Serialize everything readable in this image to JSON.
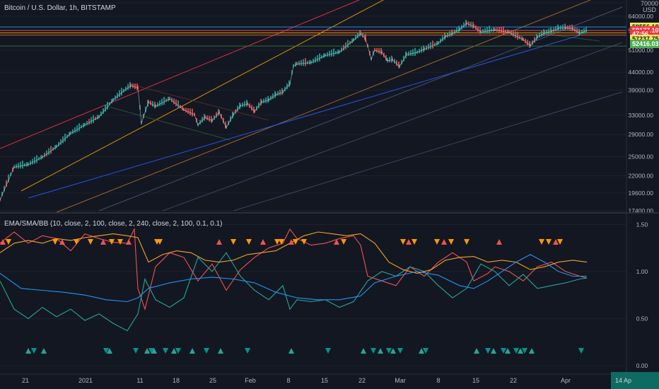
{
  "chart_data": [
    {
      "type": "line",
      "title": "Bitcoin / U.S. Dollar, 1h, BITSTAMP",
      "currency": "USD",
      "scale": "log",
      "ylim": [
        17400,
        70000
      ],
      "yticks": [
        70000,
        64000,
        58000,
        51000,
        44000,
        39000,
        33000,
        29000,
        25000,
        22000,
        19600,
        17400
      ],
      "xticks": [
        "21",
        "2021",
        "11",
        "18",
        "25",
        "Feb",
        "8",
        "15",
        "22",
        "Mar",
        "8",
        "15",
        "22",
        "Apr"
      ],
      "price_tags": [
        {
          "label": "59556.18",
          "value": 59556,
          "bg": "#f0ea5c",
          "fg": "#131722"
        },
        {
          "label": "58177.10",
          "value": 58177,
          "bg": "#f23645",
          "fg": "#ffffff"
        },
        {
          "label": "47:56",
          "value": 56800,
          "bg": "#f23645",
          "fg": "#ffffff"
        },
        {
          "label": "57237.75",
          "value": 54900,
          "bg": "#f0ea5c",
          "fg": "#131722"
        },
        {
          "label": "52416.03",
          "value": 53200,
          "bg": "#4caf50",
          "fg": "#ffffff"
        }
      ],
      "series": [
        {
          "values": [
            [
              0,
              18700
            ],
            [
              20,
              23300
            ],
            [
              40,
              23700
            ],
            [
              60,
              24900
            ],
            [
              80,
              26700
            ],
            [
              100,
              29200
            ],
            [
              120,
              30900
            ],
            [
              140,
              32600
            ],
            [
              160,
              36500
            ],
            [
              175,
              38800
            ],
            [
              185,
              40200
            ],
            [
              195,
              39600
            ],
            [
              200,
              31300
            ],
            [
              210,
              36000
            ],
            [
              220,
              35000
            ],
            [
              240,
              36800
            ],
            [
              260,
              34200
            ],
            [
              275,
              33100
            ],
            [
              280,
              30900
            ],
            [
              290,
              32500
            ],
            [
              300,
              31800
            ],
            [
              310,
              33600
            ],
            [
              320,
              30400
            ],
            [
              330,
              33100
            ],
            [
              340,
              35100
            ],
            [
              350,
              35600
            ],
            [
              360,
              33800
            ],
            [
              370,
              36000
            ],
            [
              380,
              36500
            ],
            [
              390,
              37800
            ],
            [
              400,
              38500
            ],
            [
              410,
              40700
            ],
            [
              415,
              45800
            ],
            [
              420,
              46500
            ],
            [
              440,
              46900
            ],
            [
              460,
              49200
            ],
            [
              480,
              50300
            ],
            [
              500,
              54500
            ],
            [
              510,
              57000
            ],
            [
              517,
              55000
            ],
            [
              520,
              52400
            ],
            [
              525,
              48000
            ],
            [
              530,
              51000
            ],
            [
              540,
              50200
            ],
            [
              548,
              47500
            ],
            [
              555,
              47800
            ],
            [
              565,
              45700
            ],
            [
              575,
              49500
            ],
            [
              590,
              50200
            ],
            [
              600,
              51300
            ],
            [
              620,
              53400
            ],
            [
              630,
              55800
            ],
            [
              640,
              57000
            ],
            [
              650,
              58500
            ],
            [
              660,
              61000
            ],
            [
              670,
              59800
            ],
            [
              680,
              57500
            ],
            [
              700,
              58400
            ],
            [
              720,
              57400
            ],
            [
              740,
              54700
            ],
            [
              750,
              52500
            ],
            [
              760,
              55600
            ],
            [
              770,
              57200
            ],
            [
              780,
              57800
            ],
            [
              790,
              59000
            ],
            [
              800,
              59200
            ],
            [
              810,
              58800
            ],
            [
              820,
              57100
            ],
            [
              830,
              58100
            ]
          ]
        }
      ],
      "colors": {
        "up": "#26a69a",
        "down": "#ef5350",
        "line": "#d1d4dc"
      }
    },
    {
      "type": "line",
      "title": "EMA/SMA/BB (10, close, 2, 100, close, 2, 240, close, 2, 100, 0.1, 0.1)",
      "ylim": [
        0,
        1.6
      ],
      "yticks": [
        "1.50",
        "1.00",
        "0.50",
        "0.00"
      ],
      "series": [
        {
          "color": "#ef5350",
          "values": [
            [
              0,
              1.3
            ],
            [
              20,
              1.42
            ],
            [
              40,
              1.3
            ],
            [
              60,
              1.38
            ],
            [
              80,
              1.35
            ],
            [
              100,
              1.22
            ],
            [
              120,
              1.4
            ],
            [
              140,
              1.35
            ],
            [
              160,
              1.31
            ],
            [
              180,
              1.3
            ],
            [
              190,
              1.45
            ],
            [
              195,
              0.82
            ],
            [
              205,
              0.6
            ],
            [
              220,
              1.05
            ],
            [
              240,
              1.2
            ],
            [
              260,
              1.15
            ],
            [
              280,
              0.9
            ],
            [
              300,
              1.08
            ],
            [
              320,
              0.8
            ],
            [
              340,
              1.02
            ],
            [
              360,
              1.15
            ],
            [
              380,
              1.25
            ],
            [
              400,
              1.3
            ],
            [
              410,
              1.45
            ],
            [
              420,
              1.35
            ],
            [
              440,
              1.28
            ],
            [
              460,
              1.3
            ],
            [
              480,
              1.35
            ],
            [
              500,
              1.38
            ],
            [
              510,
              1.28
            ],
            [
              520,
              0.95
            ],
            [
              540,
              0.9
            ],
            [
              560,
              0.85
            ],
            [
              580,
              1.05
            ],
            [
              600,
              0.95
            ],
            [
              620,
              1.1
            ],
            [
              640,
              1.2
            ],
            [
              660,
              1.1
            ],
            [
              670,
              0.9
            ],
            [
              690,
              0.98
            ],
            [
              700,
              1.05
            ],
            [
              720,
              1.0
            ],
            [
              740,
              0.9
            ],
            [
              760,
              1.05
            ],
            [
              780,
              1.1
            ],
            [
              800,
              1.0
            ],
            [
              820,
              0.95
            ],
            [
              830,
              0.93
            ]
          ]
        },
        {
          "color": "#26a69a",
          "values": [
            [
              0,
              0.9
            ],
            [
              20,
              0.6
            ],
            [
              40,
              0.5
            ],
            [
              60,
              0.62
            ],
            [
              80,
              0.52
            ],
            [
              100,
              0.6
            ],
            [
              120,
              0.48
            ],
            [
              140,
              0.55
            ],
            [
              160,
              0.45
            ],
            [
              180,
              0.37
            ],
            [
              195,
              0.55
            ],
            [
              205,
              0.92
            ],
            [
              220,
              0.7
            ],
            [
              240,
              0.62
            ],
            [
              260,
              0.72
            ],
            [
              280,
              1.15
            ],
            [
              300,
              1.0
            ],
            [
              320,
              1.2
            ],
            [
              340,
              0.95
            ],
            [
              360,
              0.8
            ],
            [
              380,
              0.7
            ],
            [
              400,
              0.85
            ],
            [
              410,
              0.6
            ],
            [
              420,
              0.7
            ],
            [
              440,
              0.68
            ],
            [
              460,
              0.7
            ],
            [
              480,
              0.62
            ],
            [
              500,
              0.68
            ],
            [
              520,
              0.9
            ],
            [
              540,
              1.0
            ],
            [
              560,
              0.95
            ],
            [
              580,
              1.05
            ],
            [
              600,
              1.0
            ],
            [
              620,
              0.85
            ],
            [
              640,
              0.72
            ],
            [
              660,
              0.82
            ],
            [
              680,
              1.08
            ],
            [
              700,
              1.0
            ],
            [
              720,
              0.85
            ],
            [
              740,
              0.97
            ],
            [
              760,
              0.82
            ],
            [
              780,
              0.85
            ],
            [
              800,
              0.88
            ],
            [
              820,
              0.92
            ],
            [
              830,
              0.93
            ]
          ]
        },
        {
          "color": "#f0a32a",
          "values": [
            [
              0,
              1.2
            ],
            [
              20,
              1.3
            ],
            [
              40,
              1.33
            ],
            [
              60,
              1.3
            ],
            [
              80,
              1.35
            ],
            [
              100,
              1.33
            ],
            [
              120,
              1.36
            ],
            [
              140,
              1.38
            ],
            [
              160,
              1.4
            ],
            [
              180,
              1.38
            ],
            [
              195,
              1.36
            ],
            [
              210,
              1.1
            ],
            [
              230,
              1.18
            ],
            [
              250,
              1.22
            ],
            [
              270,
              1.2
            ],
            [
              290,
              1.12
            ],
            [
              310,
              1.1
            ],
            [
              330,
              1.12
            ],
            [
              350,
              1.18
            ],
            [
              370,
              1.2
            ],
            [
              390,
              1.22
            ],
            [
              410,
              1.3
            ],
            [
              430,
              1.38
            ],
            [
              450,
              1.42
            ],
            [
              470,
              1.4
            ],
            [
              490,
              1.38
            ],
            [
              510,
              1.4
            ],
            [
              530,
              1.3
            ],
            [
              550,
              1.1
            ],
            [
              570,
              1.02
            ],
            [
              590,
              0.98
            ],
            [
              610,
              1.02
            ],
            [
              630,
              1.12
            ],
            [
              650,
              1.15
            ],
            [
              670,
              1.16
            ],
            [
              690,
              1.1
            ],
            [
              710,
              1.12
            ],
            [
              730,
              1.1
            ],
            [
              750,
              1.02
            ],
            [
              770,
              1.05
            ],
            [
              790,
              1.1
            ],
            [
              810,
              1.12
            ],
            [
              830,
              1.1
            ]
          ]
        },
        {
          "color": "#2196f3",
          "values": [
            [
              0,
              0.98
            ],
            [
              30,
              0.82
            ],
            [
              60,
              0.8
            ],
            [
              90,
              0.78
            ],
            [
              120,
              0.75
            ],
            [
              150,
              0.7
            ],
            [
              180,
              0.68
            ],
            [
              195,
              0.72
            ],
            [
              210,
              0.82
            ],
            [
              240,
              0.88
            ],
            [
              270,
              0.92
            ],
            [
              300,
              0.94
            ],
            [
              330,
              0.92
            ],
            [
              360,
              0.88
            ],
            [
              390,
              0.78
            ],
            [
              420,
              0.72
            ],
            [
              450,
              0.7
            ],
            [
              480,
              0.7
            ],
            [
              510,
              0.74
            ],
            [
              530,
              0.88
            ],
            [
              560,
              0.95
            ],
            [
              590,
              1.0
            ],
            [
              620,
              0.96
            ],
            [
              650,
              0.85
            ],
            [
              670,
              0.82
            ],
            [
              690,
              0.9
            ],
            [
              710,
              1.0
            ],
            [
              730,
              1.1
            ],
            [
              750,
              1.18
            ],
            [
              770,
              1.1
            ],
            [
              790,
              1.0
            ],
            [
              810,
              0.95
            ],
            [
              830,
              0.95
            ]
          ]
        }
      ],
      "markers_top": {
        "color_up": "#ef5350",
        "color_down": "#ff9800",
        "x": [
          4,
          12,
          78,
          88,
          108,
          128,
          146,
          158,
          170,
          182,
          222,
          226,
          310,
          330,
          352,
          372,
          392,
          398,
          412,
          418,
          430,
          476,
          486,
          570,
          578,
          586,
          618,
          628,
          638,
          660,
          706,
          766,
          776,
          786,
          792
        ]
      },
      "markers_bottom": {
        "color_up": "#26a69a",
        "color_down": "#009688",
        "x": [
          40,
          48,
          62,
          150,
          155,
          192,
          208,
          214,
          218,
          234,
          246,
          252,
          272,
          292,
          312,
          350,
          412,
          464,
          514,
          528,
          538,
          550,
          556,
          566,
          596,
          602,
          674,
          690,
          698,
          712,
          718,
          730,
          736,
          742,
          752,
          822
        ]
      }
    }
  ],
  "badge": "14 Ap"
}
